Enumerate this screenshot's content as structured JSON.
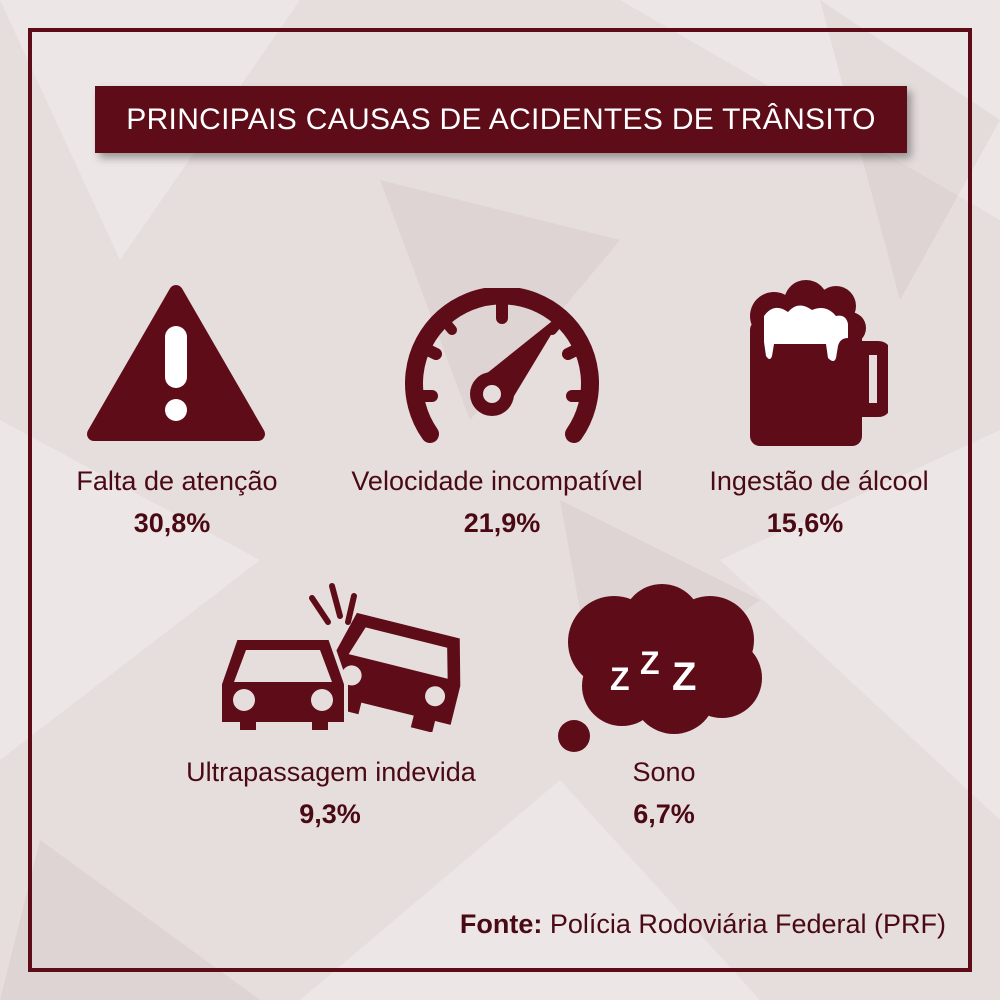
{
  "title": "PRINCIPAIS CAUSAS DE ACIDENTES DE TRÂNSITO",
  "colors": {
    "accent": "#5e0c18",
    "text": "#4a0a14",
    "background": "#e6dddd"
  },
  "causes": [
    {
      "label": "Falta de atenção",
      "value": "30,8%",
      "icon": "warning-triangle-icon"
    },
    {
      "label": "Velocidade incompatível",
      "value": "21,9%",
      "icon": "speedometer-icon"
    },
    {
      "label": "Ingestão de álcool",
      "value": "15,6%",
      "icon": "beer-mug-icon"
    },
    {
      "label": "Ultrapassagem indevida",
      "value": "9,3%",
      "icon": "car-crash-icon"
    },
    {
      "label": "Sono",
      "value": "6,7%",
      "icon": "sleep-cloud-icon"
    }
  ],
  "source": {
    "prefix": "Fonte:",
    "text": " Polícia Rodoviária Federal (PRF)"
  }
}
